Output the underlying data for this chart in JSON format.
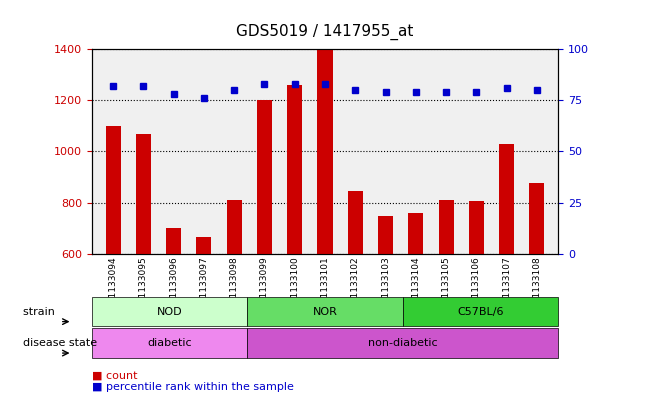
{
  "title": "GDS5019 / 1417955_at",
  "samples": [
    "GSM1133094",
    "GSM1133095",
    "GSM1133096",
    "GSM1133097",
    "GSM1133098",
    "GSM1133099",
    "GSM1133100",
    "GSM1133101",
    "GSM1133102",
    "GSM1133103",
    "GSM1133104",
    "GSM1133105",
    "GSM1133106",
    "GSM1133107",
    "GSM1133108"
  ],
  "counts": [
    1100,
    1070,
    700,
    665,
    810,
    1200,
    1260,
    1400,
    845,
    748,
    758,
    810,
    805,
    1030,
    875
  ],
  "percentiles": [
    82,
    82,
    78,
    76,
    80,
    83,
    83,
    83,
    80,
    79,
    79,
    79,
    79,
    81,
    80
  ],
  "bar_color": "#cc0000",
  "dot_color": "#0000cc",
  "ylim_left": [
    600,
    1400
  ],
  "ylim_right": [
    0,
    100
  ],
  "yticks_left": [
    600,
    800,
    1000,
    1200,
    1400
  ],
  "yticks_right": [
    0,
    25,
    50,
    75,
    100
  ],
  "strain_groups": [
    {
      "label": "NOD",
      "start": 0,
      "end": 5,
      "color": "#ccffcc"
    },
    {
      "label": "NOR",
      "start": 5,
      "end": 10,
      "color": "#66dd66"
    },
    {
      "label": "C57BL/6",
      "start": 10,
      "end": 15,
      "color": "#33cc33"
    }
  ],
  "disease_groups": [
    {
      "label": "diabetic",
      "start": 0,
      "end": 5,
      "color": "#ee88ee"
    },
    {
      "label": "non-diabetic",
      "start": 5,
      "end": 15,
      "color": "#cc55cc"
    }
  ],
  "strain_row_label": "strain",
  "disease_row_label": "disease state",
  "legend_count_label": "count",
  "legend_pct_label": "percentile rank within the sample",
  "background_color": "#ffffff"
}
